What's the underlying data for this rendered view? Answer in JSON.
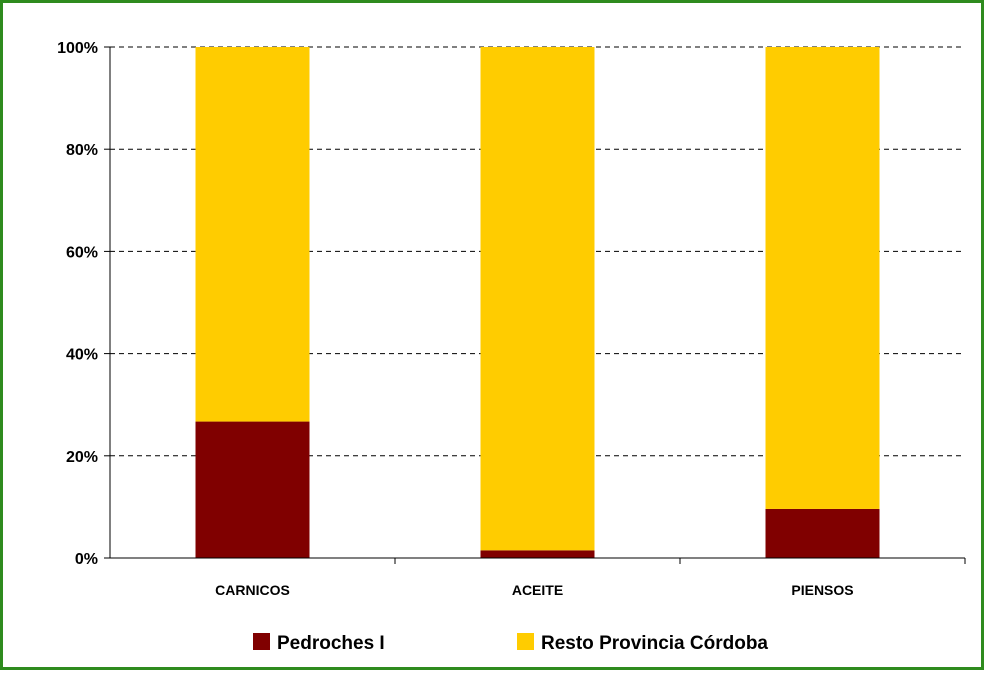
{
  "colors": {
    "frame_border": "#2e8b1e",
    "pedroches": "#800000",
    "resto": "#ffcc00"
  },
  "chart_data": {
    "type": "bar",
    "stacked": true,
    "percent_stacked": true,
    "title": "",
    "xlabel": "",
    "ylabel": "",
    "ylim": [
      0,
      100
    ],
    "yticks": [
      "0%",
      "20%",
      "40%",
      "60%",
      "80%",
      "100%"
    ],
    "grid": "horizontal-dashed",
    "legend_position": "bottom",
    "categories": [
      "CARNICOS",
      "ACEITE",
      "PIENSOS"
    ],
    "series": [
      {
        "name": "Pedroches I",
        "color": "#800000",
        "values": [
          26.7,
          1.5,
          9.6
        ]
      },
      {
        "name": "Resto Provincia Córdoba",
        "color": "#ffcc00",
        "values": [
          73.3,
          98.5,
          90.4
        ]
      }
    ]
  }
}
